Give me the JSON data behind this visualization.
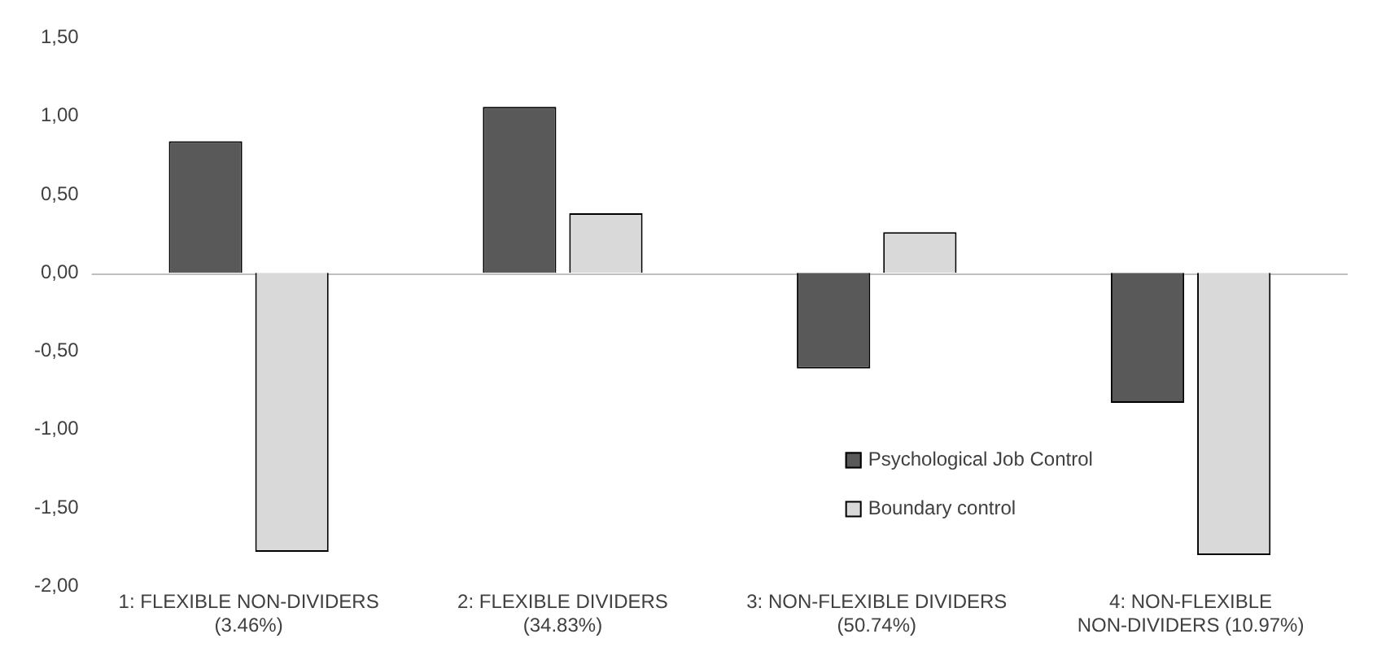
{
  "chart_data": {
    "type": "bar",
    "categories": [
      "1: FLEXIBLE NON-DIVIDERS (3.46%)",
      "2: FLEXIBLE DIVIDERS (34.83%)",
      "3: NON-FLEXIBLE DIVIDERS (50.74%)",
      "4: NON-FLEXIBLE NON-DIVIDERS (10.97%)"
    ],
    "series": [
      {
        "name": "Psychological Job Control",
        "color": "#595959",
        "values": [
          0.84,
          1.06,
          -0.61,
          -0.83
        ]
      },
      {
        "name": "Boundary control",
        "color": "#d9d9d9",
        "values": [
          -1.78,
          0.38,
          0.26,
          -1.8
        ]
      }
    ],
    "ylim": [
      -2,
      1.5
    ],
    "yticks": [
      {
        "value": -2,
        "label": "-2,00"
      },
      {
        "value": -1.5,
        "label": "-1,50"
      },
      {
        "value": -1,
        "label": "-1,00"
      },
      {
        "value": -0.5,
        "label": "-0,50"
      },
      {
        "value": 0,
        "label": "0,00"
      },
      {
        "value": 0.5,
        "label": "0,50"
      },
      {
        "value": 1,
        "label": "1,00"
      },
      {
        "value": 1.5,
        "label": "1,50"
      }
    ],
    "grid": false,
    "legend": "bottom right",
    "ref_lines": [
      {
        "axis": "y",
        "value": 0,
        "color": "#bfbfbf"
      }
    ]
  }
}
